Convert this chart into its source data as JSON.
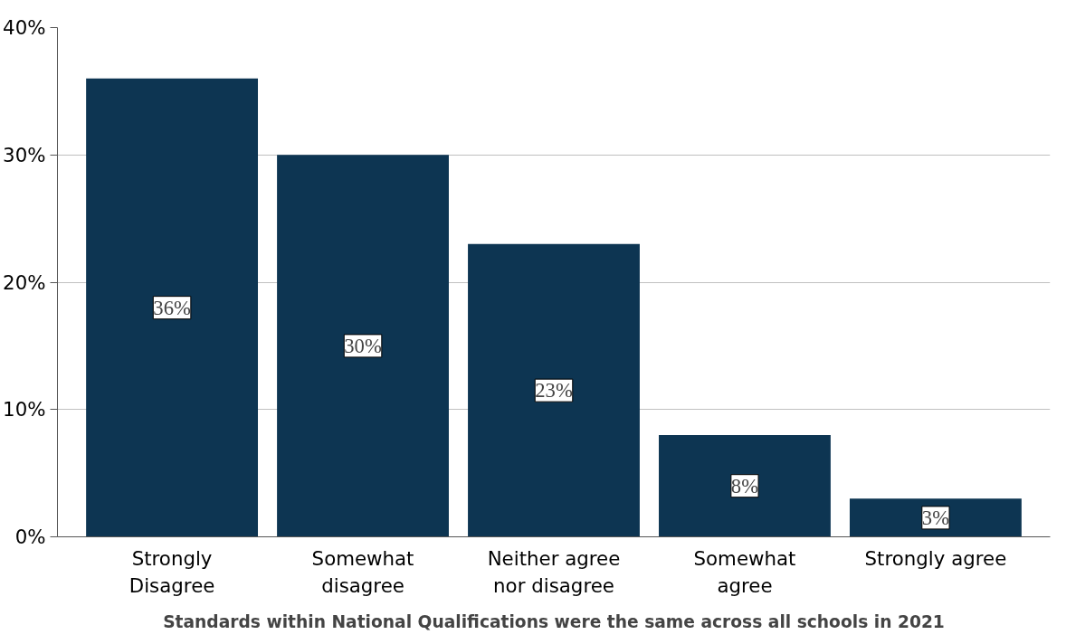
{
  "chart_data": {
    "type": "bar",
    "xlabel": "Standards within National Qualifications were the same across all schools in 2021",
    "categories": [
      "Strongly\nDisagree",
      "Somewhat\ndisagree",
      "Neither agree\nnor disagree",
      "Somewhat\nagree",
      "Strongly agree"
    ],
    "values": [
      36,
      30,
      23,
      8,
      3
    ],
    "value_labels": [
      "36%",
      "30%",
      "23%",
      "8%",
      "3%"
    ],
    "color": "#0d3552",
    "ylim": [
      0,
      40
    ],
    "yticks": [
      {
        "value": 0,
        "label": "0%"
      },
      {
        "value": 10,
        "label": "10%"
      },
      {
        "value": 20,
        "label": "20%"
      },
      {
        "value": 30,
        "label": "30%"
      },
      {
        "value": 40,
        "label": "40%"
      }
    ],
    "grid": "y"
  }
}
